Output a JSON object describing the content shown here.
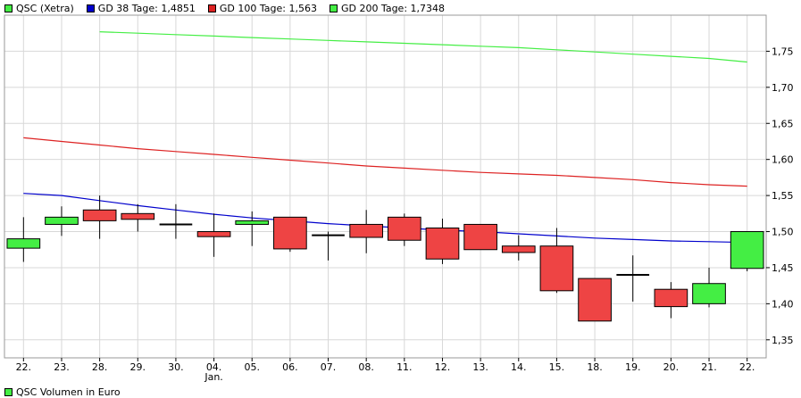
{
  "legend": [
    {
      "label": "QSC (Xetra)",
      "color": "#44ee44"
    },
    {
      "label": "GD 38 Tage: 1,4851",
      "color": "#0000cc"
    },
    {
      "label": "GD 100 Tage: 1,563",
      "color": "#dd2222"
    },
    {
      "label": "GD 200 Tage: 1,7348",
      "color": "#44ee44"
    }
  ],
  "volume_label": "QSC Volumen in Euro",
  "chart_data": {
    "type": "candlestick",
    "ylim": [
      1.325,
      1.8
    ],
    "yticks": [
      "1,35",
      "1,40",
      "1,45",
      "1,50",
      "1,55",
      "1,60",
      "1,65",
      "1,70",
      "1,75"
    ],
    "ytick_values": [
      1.35,
      1.4,
      1.45,
      1.5,
      1.55,
      1.6,
      1.65,
      1.7,
      1.75
    ],
    "categories": [
      "22.",
      "23.",
      "28.",
      "29.",
      "30.",
      "04.",
      "05.",
      "06.",
      "07.",
      "08.",
      "11.",
      "12.",
      "13.",
      "14.",
      "15.",
      "18.",
      "19.",
      "20.",
      "21.",
      "22."
    ],
    "sublabels": {
      "5": "Jan."
    },
    "candles": [
      {
        "open": 1.477,
        "close": 1.49,
        "high": 1.52,
        "low": 1.458
      },
      {
        "open": 1.51,
        "close": 1.52,
        "high": 1.535,
        "low": 1.494
      },
      {
        "open": 1.53,
        "close": 1.515,
        "high": 1.55,
        "low": 1.49
      },
      {
        "open": 1.525,
        "close": 1.517,
        "high": 1.538,
        "low": 1.5
      },
      {
        "open": 1.51,
        "close": 1.51,
        "high": 1.538,
        "low": 1.49
      },
      {
        "open": 1.5,
        "close": 1.493,
        "high": 1.525,
        "low": 1.465
      },
      {
        "open": 1.51,
        "close": 1.515,
        "high": 1.528,
        "low": 1.48
      },
      {
        "open": 1.52,
        "close": 1.476,
        "high": 1.52,
        "low": 1.472
      },
      {
        "open": 1.495,
        "close": 1.495,
        "high": 1.5,
        "low": 1.46
      },
      {
        "open": 1.51,
        "close": 1.492,
        "high": 1.53,
        "low": 1.47
      },
      {
        "open": 1.52,
        "close": 1.488,
        "high": 1.525,
        "low": 1.48
      },
      {
        "open": 1.505,
        "close": 1.462,
        "high": 1.518,
        "low": 1.455
      },
      {
        "open": 1.51,
        "close": 1.475,
        "high": 1.51,
        "low": 1.475
      },
      {
        "open": 1.48,
        "close": 1.471,
        "high": 1.495,
        "low": 1.46
      },
      {
        "open": 1.48,
        "close": 1.418,
        "high": 1.505,
        "low": 1.415
      },
      {
        "open": 1.435,
        "close": 1.376,
        "high": 1.435,
        "low": 1.376
      },
      {
        "open": 1.44,
        "close": 1.44,
        "high": 1.467,
        "low": 1.403
      },
      {
        "open": 1.42,
        "close": 1.396,
        "high": 1.43,
        "low": 1.38
      },
      {
        "open": 1.4,
        "close": 1.428,
        "high": 1.45,
        "low": 1.395
      },
      {
        "open": 1.449,
        "close": 1.5,
        "high": 1.5,
        "low": 1.445
      }
    ],
    "series": [
      {
        "name": "GD 38 Tage",
        "color": "#0000cc",
        "values": [
          1.553,
          1.55,
          1.543,
          1.536,
          1.53,
          1.524,
          1.519,
          1.515,
          1.511,
          1.508,
          1.505,
          1.502,
          1.5,
          1.497,
          1.494,
          1.491,
          1.489,
          1.487,
          1.486,
          1.485
        ]
      },
      {
        "name": "GD 100 Tage",
        "color": "#dd2222",
        "values": [
          1.63,
          1.625,
          1.62,
          1.615,
          1.611,
          1.607,
          1.603,
          1.599,
          1.595,
          1.591,
          1.588,
          1.585,
          1.582,
          1.58,
          1.578,
          1.575,
          1.572,
          1.568,
          1.565,
          1.563
        ]
      },
      {
        "name": "GD 200 Tage",
        "color": "#44ee44",
        "values": [
          null,
          null,
          1.777,
          1.775,
          1.773,
          1.771,
          1.769,
          1.767,
          1.765,
          1.763,
          1.761,
          1.759,
          1.757,
          1.755,
          1.752,
          1.749,
          1.746,
          1.743,
          1.74,
          1.735
        ]
      }
    ],
    "up_color": "#44ee44",
    "down_color": "#ee4444",
    "grid": true
  }
}
